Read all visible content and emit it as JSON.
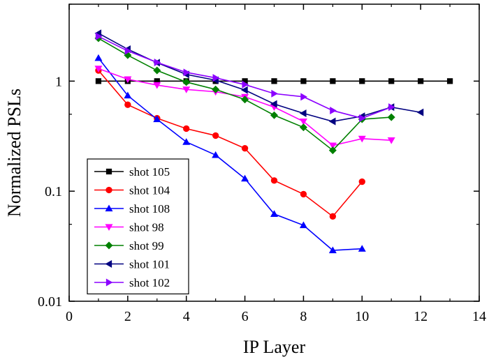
{
  "chart_data": {
    "type": "line",
    "title": "",
    "xlabel": "IP Layer",
    "ylabel": "Normalized PSLs",
    "xlim": [
      0,
      14
    ],
    "ylim": [
      0.01,
      5
    ],
    "yscale": "log",
    "x_ticks": [
      0,
      2,
      4,
      6,
      8,
      10,
      12,
      14
    ],
    "y_ticks": [
      0.01,
      0.1,
      1
    ],
    "x_tick_labels": [
      "0",
      "2",
      "4",
      "6",
      "8",
      "10",
      "12",
      "14"
    ],
    "y_tick_labels": [
      "0.01",
      "0.1",
      "1"
    ],
    "grid": false,
    "legend_position": "bottom-left",
    "series": [
      {
        "name": "shot 105",
        "color": "#000000",
        "marker": "square",
        "x": [
          1,
          2,
          3,
          4,
          5,
          6,
          7,
          8,
          9,
          10,
          11,
          12,
          13
        ],
        "y": [
          1,
          1,
          1,
          1,
          1,
          1,
          1,
          1,
          1,
          1,
          1,
          1,
          1
        ]
      },
      {
        "name": "shot 104",
        "color": "#ff0000",
        "marker": "circle",
        "x": [
          1,
          2,
          3,
          4,
          5,
          6,
          7,
          8,
          9,
          10
        ],
        "y": [
          1.25,
          0.61,
          0.46,
          0.37,
          0.32,
          0.245,
          0.125,
          0.094,
          0.059,
          0.122
        ]
      },
      {
        "name": "shot 108",
        "color": "#0000ff",
        "marker": "triangle-up",
        "x": [
          1,
          2,
          3,
          4,
          5,
          6,
          7,
          8,
          9,
          10
        ],
        "y": [
          1.62,
          0.74,
          0.45,
          0.28,
          0.213,
          0.13,
          0.062,
          0.049,
          0.029,
          0.03
        ]
      },
      {
        "name": "shot 98",
        "color": "#ff00ff",
        "marker": "triangle-down",
        "x": [
          1,
          2,
          3,
          4,
          5,
          6,
          7,
          8,
          9,
          10,
          11
        ],
        "y": [
          1.3,
          1.04,
          0.92,
          0.84,
          0.8,
          0.72,
          0.58,
          0.43,
          0.26,
          0.3,
          0.29
        ]
      },
      {
        "name": "shot 99",
        "color": "#008000",
        "marker": "diamond",
        "x": [
          1,
          2,
          3,
          4,
          5,
          6,
          7,
          8,
          9,
          10,
          11
        ],
        "y": [
          2.45,
          1.72,
          1.25,
          0.98,
          0.84,
          0.68,
          0.49,
          0.38,
          0.235,
          0.45,
          0.47
        ]
      },
      {
        "name": "shot 101",
        "color": "#000080",
        "marker": "triangle-left",
        "x": [
          1,
          2,
          3,
          4,
          5,
          6,
          7,
          8,
          9,
          10,
          11,
          12
        ],
        "y": [
          2.72,
          1.95,
          1.47,
          1.15,
          1.02,
          0.83,
          0.62,
          0.51,
          0.43,
          0.48,
          0.58,
          0.52
        ]
      },
      {
        "name": "shot 102",
        "color": "#8b00ff",
        "marker": "triangle-right",
        "x": [
          1,
          2,
          3,
          4,
          5,
          6,
          7,
          8,
          9,
          10,
          11
        ],
        "y": [
          2.55,
          1.88,
          1.48,
          1.2,
          1.07,
          0.93,
          0.77,
          0.72,
          0.54,
          0.46,
          0.58
        ]
      }
    ]
  }
}
